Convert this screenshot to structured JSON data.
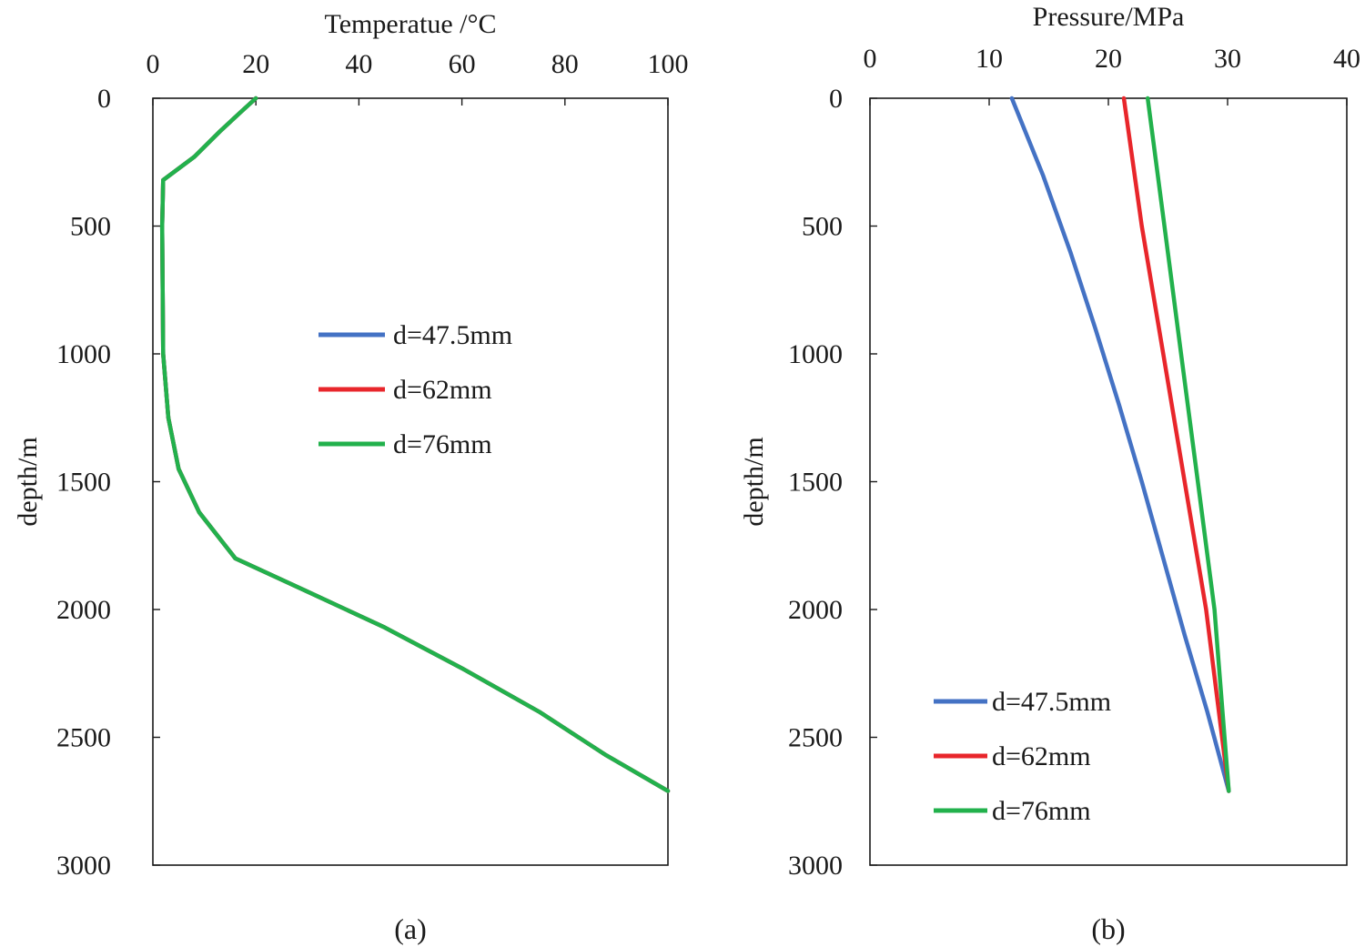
{
  "chart_data": [
    {
      "id": "a",
      "type": "line",
      "panel_label": "(a)",
      "xlabel": "Temperatue /°C",
      "ylabel": "depth/m",
      "xlim": [
        0,
        100
      ],
      "ylim": [
        0,
        3000
      ],
      "x_axis_position": "top",
      "y_inverted": true,
      "xticks": [
        0,
        20,
        40,
        60,
        80,
        100
      ],
      "yticks": [
        0,
        500,
        1000,
        1500,
        2000,
        2500,
        3000
      ],
      "legend": {
        "placement": "center"
      },
      "series": [
        {
          "name": "d=47.5mm",
          "color": "#4472c4",
          "points": [
            [
              20,
              0
            ],
            [
              17,
              55
            ],
            [
              13,
              130
            ],
            [
              8,
              230
            ],
            [
              2,
              320
            ],
            [
              2,
              320
            ],
            [
              1.8,
              500
            ],
            [
              2,
              1000
            ],
            [
              3,
              1250
            ],
            [
              5,
              1450
            ],
            [
              9,
              1620
            ],
            [
              16,
              1800
            ],
            [
              30,
              1930
            ],
            [
              45,
              2070
            ],
            [
              60,
              2230
            ],
            [
              75,
              2400
            ],
            [
              88,
              2570
            ],
            [
              100,
              2710
            ]
          ]
        },
        {
          "name": "d=62mm",
          "color": "#e8262b",
          "points": [
            [
              20,
              0
            ],
            [
              17,
              55
            ],
            [
              13,
              130
            ],
            [
              8,
              230
            ],
            [
              2,
              320
            ],
            [
              2,
              320
            ],
            [
              1.8,
              500
            ],
            [
              2,
              1000
            ],
            [
              3,
              1250
            ],
            [
              5,
              1450
            ],
            [
              9,
              1620
            ],
            [
              16,
              1800
            ],
            [
              30,
              1930
            ],
            [
              45,
              2070
            ],
            [
              60,
              2230
            ],
            [
              75,
              2400
            ],
            [
              88,
              2570
            ],
            [
              100,
              2710
            ]
          ]
        },
        {
          "name": "d=76mm",
          "color": "#22b14c",
          "points": [
            [
              20,
              0
            ],
            [
              17,
              55
            ],
            [
              13,
              130
            ],
            [
              8,
              230
            ],
            [
              2,
              320
            ],
            [
              2,
              320
            ],
            [
              1.8,
              500
            ],
            [
              2,
              1000
            ],
            [
              3,
              1250
            ],
            [
              5,
              1450
            ],
            [
              9,
              1620
            ],
            [
              16,
              1800
            ],
            [
              30,
              1930
            ],
            [
              45,
              2070
            ],
            [
              60,
              2230
            ],
            [
              75,
              2400
            ],
            [
              88,
              2570
            ],
            [
              100,
              2710
            ]
          ]
        }
      ]
    },
    {
      "id": "b",
      "type": "line",
      "panel_label": "(b)",
      "xlabel": "Pressure/MPa",
      "ylabel": "depth/m",
      "xlim": [
        0,
        40
      ],
      "ylim": [
        0,
        3000
      ],
      "x_axis_position": "top",
      "y_inverted": true,
      "xticks": [
        0,
        10,
        20,
        30,
        40
      ],
      "yticks": [
        0,
        500,
        1000,
        1500,
        2000,
        2500,
        3000
      ],
      "legend": {
        "placement": "lower-left"
      },
      "series": [
        {
          "name": "d=47.5mm",
          "color": "#4472c4",
          "points": [
            [
              11.9,
              0
            ],
            [
              14.5,
              300
            ],
            [
              16.8,
              600
            ],
            [
              18.9,
              900
            ],
            [
              20.9,
              1200
            ],
            [
              22.8,
              1500
            ],
            [
              24.6,
              1800
            ],
            [
              26.4,
              2100
            ],
            [
              28.3,
              2400
            ],
            [
              30.1,
              2710
            ]
          ]
        },
        {
          "name": "d=62mm",
          "color": "#e8262b",
          "points": [
            [
              21.3,
              0
            ],
            [
              22.8,
              500
            ],
            [
              24.6,
              1000
            ],
            [
              26.4,
              1500
            ],
            [
              28.2,
              2000
            ],
            [
              30.1,
              2710
            ]
          ]
        },
        {
          "name": "d=76mm",
          "color": "#22b14c",
          "points": [
            [
              23.3,
              0
            ],
            [
              24.7,
              500
            ],
            [
              26.1,
              1000
            ],
            [
              27.5,
              1500
            ],
            [
              28.9,
              2000
            ],
            [
              30.1,
              2710
            ]
          ]
        }
      ]
    }
  ]
}
